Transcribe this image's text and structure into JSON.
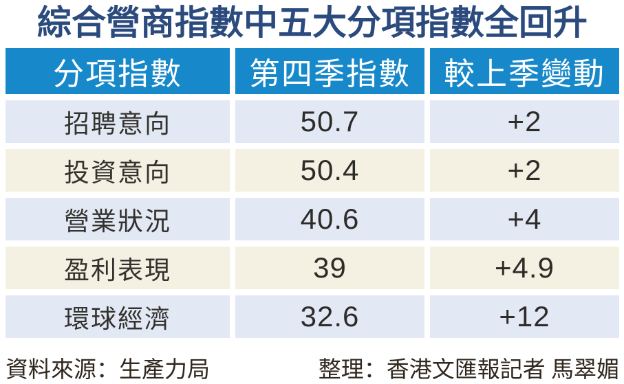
{
  "title": "綜合營商指數中五大分項指數全回升",
  "table": {
    "headers": [
      "分項指數",
      "第四季指數",
      "較上季變動"
    ],
    "rows": [
      {
        "name": "招聘意向",
        "q4_index": "50.7",
        "qoq_change": "+2"
      },
      {
        "name": "投資意向",
        "q4_index": "50.4",
        "qoq_change": "+2"
      },
      {
        "name": "營業狀況",
        "q4_index": "40.6",
        "qoq_change": "+4"
      },
      {
        "name": "盈利表現",
        "q4_index": "39",
        "qoq_change": "+4.9"
      },
      {
        "name": "環球經濟",
        "q4_index": "32.6",
        "qoq_change": "+12"
      }
    ]
  },
  "footer": {
    "source": "資料來源：生產力局",
    "credit": "整理：香港文匯報記者  馬翠媚"
  },
  "colors": {
    "header_bg": "#1789ca",
    "row_blue": "#e2e9f5",
    "row_cream": "#f4f0e2",
    "title_color": "#2b4a7d"
  },
  "chart_data": {
    "type": "table",
    "title": "綜合營商指數中五大分項指數全回升",
    "columns": [
      "分項指數",
      "第四季指數",
      "較上季變動"
    ],
    "rows": [
      [
        "招聘意向",
        50.7,
        "+2"
      ],
      [
        "投資意向",
        50.4,
        "+2"
      ],
      [
        "營業狀況",
        40.6,
        "+4"
      ],
      [
        "盈利表現",
        39,
        "+4.9"
      ],
      [
        "環球經濟",
        32.6,
        "+12"
      ]
    ],
    "source": "資料來源：生產力局",
    "credit": "整理：香港文匯報記者 馬翠媚"
  }
}
